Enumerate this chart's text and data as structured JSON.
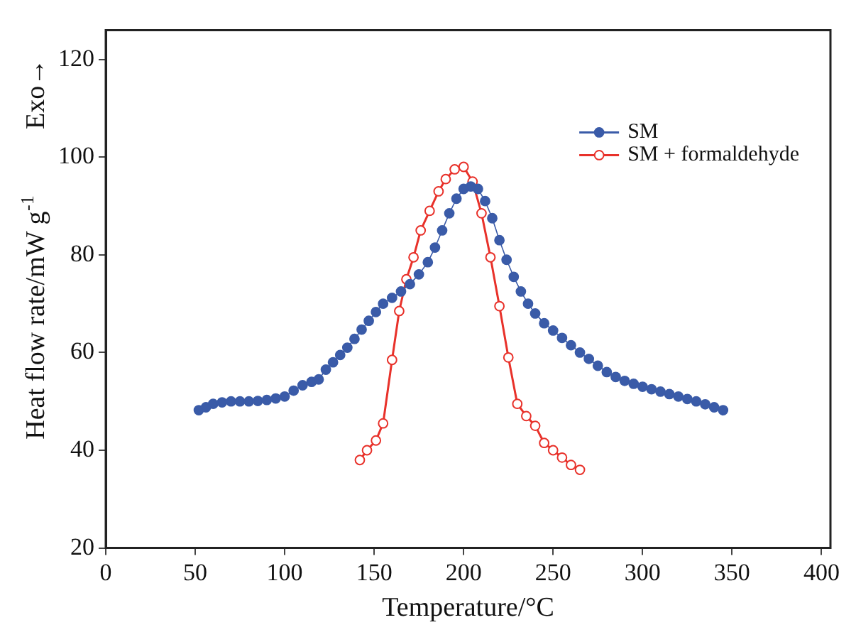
{
  "chart_data": {
    "type": "line",
    "xlabel": "Temperature/°C",
    "ylabel": "Heat flow rate/mW g$^{-1}$",
    "annotations": [
      "Exo→"
    ],
    "xlim": [
      0,
      405
    ],
    "xticks": [
      0,
      50,
      100,
      150,
      200,
      250,
      300,
      350,
      400
    ],
    "ylim": [
      20,
      126
    ],
    "yticks": [
      20,
      40,
      60,
      80,
      100,
      120
    ],
    "grid": false,
    "legend": "top right",
    "marker": "circle",
    "series": [
      {
        "name": "SM",
        "color": "#3a5ba8",
        "x": [
          52,
          56,
          60,
          65,
          70,
          75,
          80,
          85,
          90,
          95,
          100,
          105,
          110,
          115,
          119,
          123,
          127,
          131,
          135,
          139,
          143,
          147,
          151,
          155,
          160,
          165,
          170,
          175,
          180,
          184,
          188,
          192,
          196,
          200,
          204,
          208,
          212,
          216,
          220,
          224,
          228,
          232,
          236,
          240,
          245,
          250,
          255,
          260,
          265,
          270,
          275,
          280,
          285,
          290,
          295,
          300,
          305,
          310,
          315,
          320,
          325,
          330,
          335,
          340,
          345
        ],
        "values": [
          48.2,
          48.8,
          49.5,
          49.8,
          50,
          50,
          50,
          50.1,
          50.3,
          50.6,
          51,
          52.2,
          53.3,
          54,
          54.5,
          56.5,
          58,
          59.5,
          61,
          62.8,
          64.7,
          66.5,
          68.3,
          70,
          71.2,
          72.5,
          74,
          76,
          78.5,
          81.5,
          85,
          88.5,
          91.5,
          93.5,
          94,
          93.5,
          91,
          87.5,
          83,
          79,
          75.5,
          72.5,
          70,
          68,
          66,
          64.5,
          63,
          61.5,
          60,
          58.7,
          57.3,
          56,
          55,
          54.2,
          53.6,
          53,
          52.5,
          52,
          51.5,
          51,
          50.5,
          50,
          49.4,
          48.8,
          48.2
        ]
      },
      {
        "name": "SM + formaldehyde",
        "color": "#e8312a",
        "x": [
          142,
          146,
          151,
          155,
          160,
          164,
          168,
          172,
          176,
          181,
          186,
          190,
          195,
          200,
          205,
          210,
          215,
          220,
          225,
          230,
          235,
          240,
          245,
          250,
          255,
          260,
          265
        ],
        "values": [
          38,
          40,
          42,
          45.5,
          58.5,
          68.5,
          75,
          79.5,
          85,
          89,
          93,
          95.5,
          97.5,
          98,
          95,
          88.5,
          79.5,
          69.5,
          59,
          49.5,
          47,
          45,
          41.5,
          40,
          38.5,
          37,
          36
        ]
      }
    ]
  }
}
